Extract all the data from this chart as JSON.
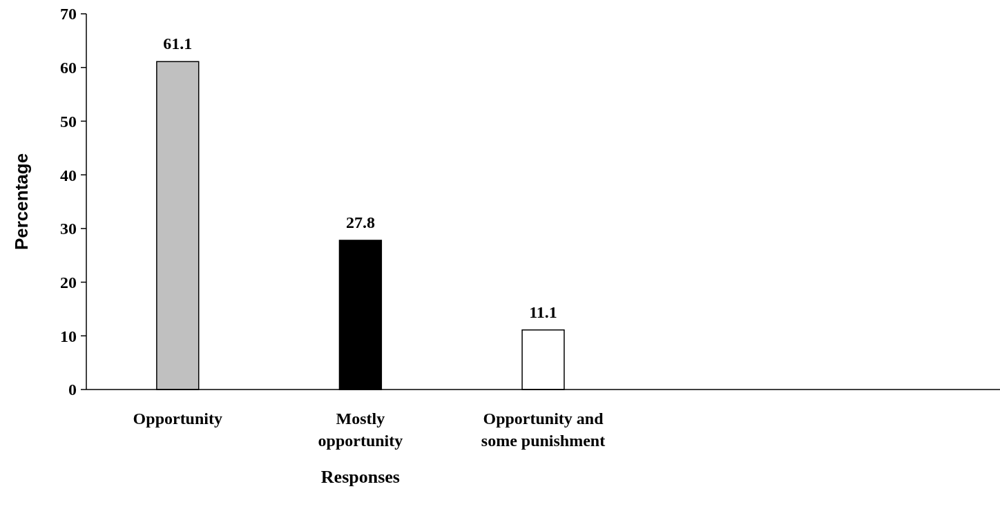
{
  "chart_data": {
    "type": "bar",
    "xlabel": "Responses",
    "ylabel": "Percentage",
    "categories": [
      "Opportunity",
      "Mostly opportunity",
      "Opportunity and some punishment",
      null,
      null
    ],
    "values": [
      61.1,
      27.8,
      11.1,
      null,
      null
    ],
    "colors": [
      "#c0c0c0",
      "#000000",
      "#ffffff",
      null,
      null
    ],
    "ylim": [
      0,
      70
    ],
    "yticks": [
      0,
      10,
      20,
      30,
      40,
      50,
      60,
      70
    ],
    "data_labels": true,
    "grid": false
  }
}
